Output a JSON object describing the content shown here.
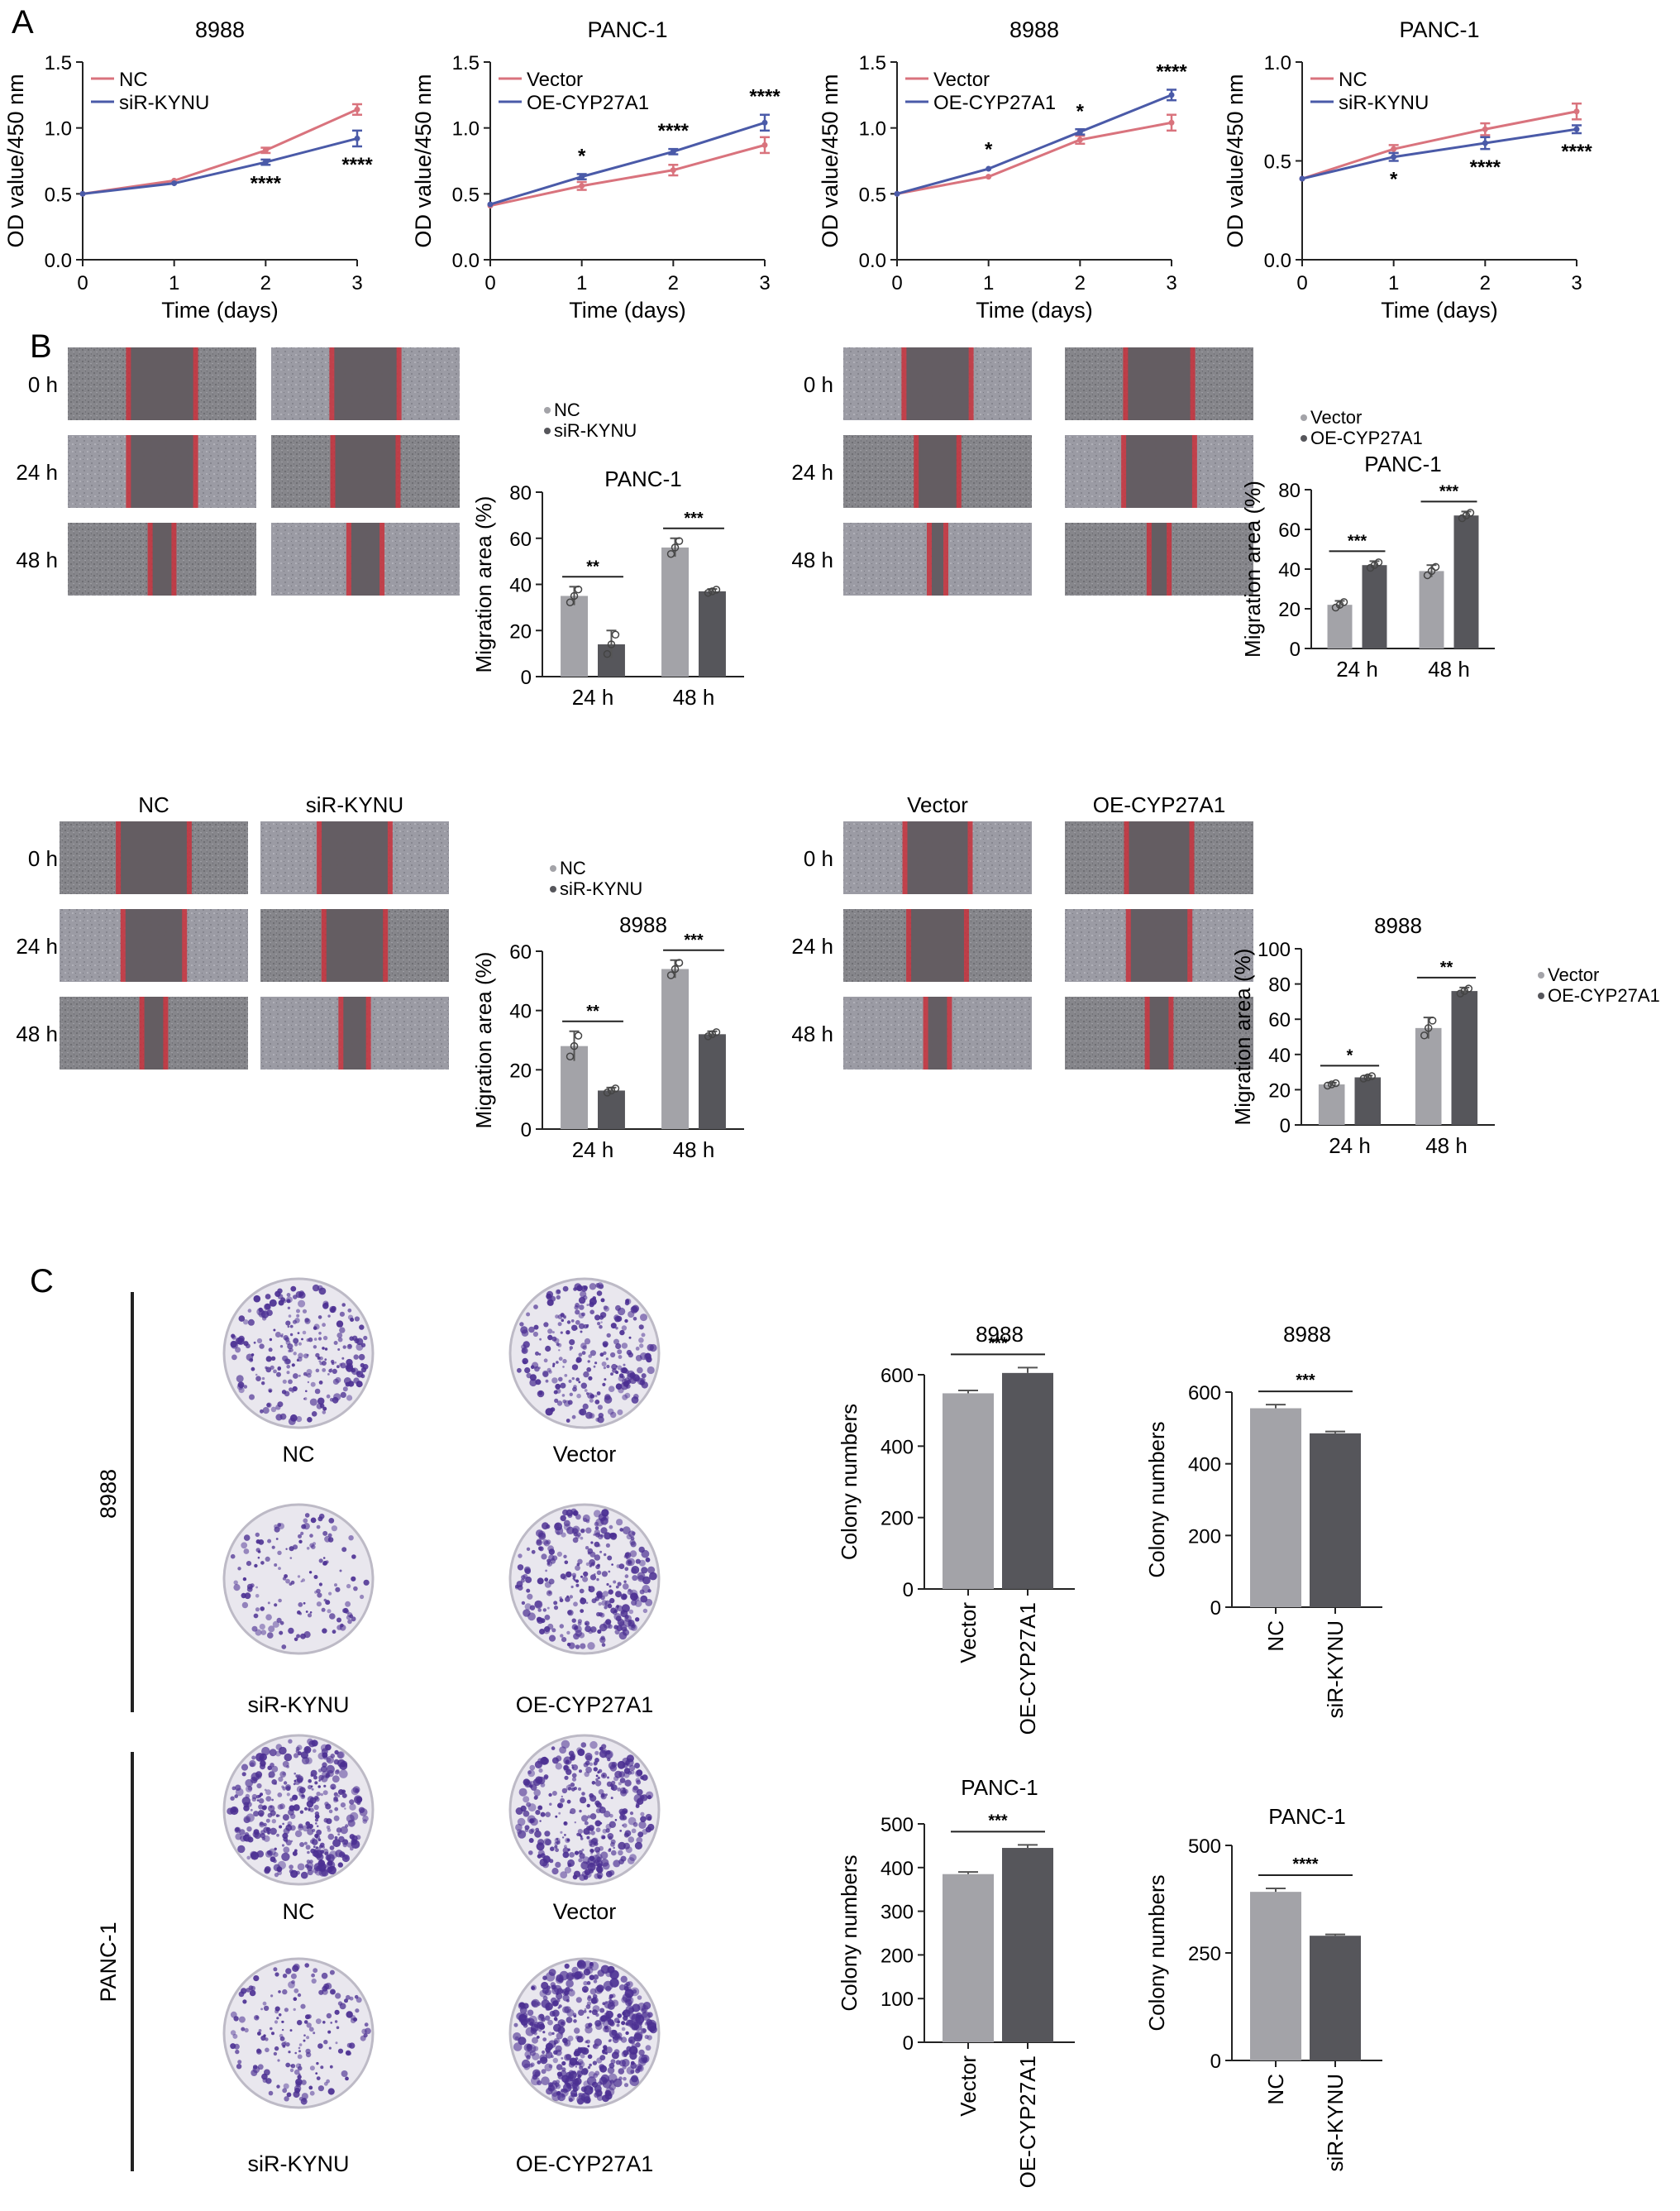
{
  "panel_labels": [
    "A",
    "B",
    "C"
  ],
  "colors": {
    "red": "#d9737d",
    "blue": "#4a5aa8",
    "bar_light": "#a3a3a8",
    "bar_dark": "#56565b",
    "wound_red": "#c8313c",
    "stain": "#4b2f92"
  },
  "wound": {
    "time_labels": [
      "0 h",
      "24 h",
      "48 h"
    ],
    "blocks": [
      {
        "col1": "NC",
        "col2": "siR-KYNU",
        "gap0": 0.33,
        "gap1": [
          0.33,
          0.32
        ],
        "gap2": [
          0.1,
          0.15
        ]
      },
      {
        "col1": "Vector",
        "col2": "OE-CYP27A1",
        "gap0": 0.33,
        "gap1": [
          0.2,
          0.35
        ],
        "gap2": [
          0.05,
          0.08
        ]
      },
      {
        "col1": "NC",
        "col2": "siR-KYNU",
        "gap0": 0.35,
        "gap1": [
          0.3,
          0.3
        ],
        "gap2": [
          0.1,
          0.12
        ]
      },
      {
        "col1": "Vector",
        "col2": "OE-CYP27A1",
        "gap0": 0.32,
        "gap1": [
          0.28,
          0.3
        ],
        "gap2": [
          0.1,
          0.1
        ]
      }
    ]
  },
  "colony": {
    "row_labels": [
      "8988",
      "PANC-1"
    ],
    "plates": [
      {
        "label": "NC",
        "density": 0.45
      },
      {
        "label": "Vector",
        "density": 0.5
      },
      {
        "label": "siR-KYNU",
        "density": 0.2
      },
      {
        "label": "OE-CYP27A1",
        "density": 0.6
      },
      {
        "label": "NC",
        "density": 0.75
      },
      {
        "label": "Vector",
        "density": 0.7
      },
      {
        "label": "siR-KYNU",
        "density": 0.3
      },
      {
        "label": "OE-CYP27A1",
        "density": 1.0
      }
    ]
  },
  "chart_data": [
    {
      "id": "A1",
      "type": "line",
      "title": "8988",
      "xlabel": "Time (days)",
      "ylabel": "OD value/450 nm",
      "x": [
        0,
        1,
        2,
        3
      ],
      "xlim": [
        0,
        3
      ],
      "ylim": [
        0,
        1.5
      ],
      "yticks": [
        "0.0",
        "0.5",
        "1.0",
        "1.5"
      ],
      "series": [
        {
          "name": "NC",
          "color": "#d9737d",
          "values": [
            0.5,
            0.6,
            0.83,
            1.14
          ],
          "err": [
            0.01,
            0.01,
            0.02,
            0.04
          ]
        },
        {
          "name": "siR-KYNU",
          "color": "#4a5aa8",
          "values": [
            0.5,
            0.58,
            0.74,
            0.92
          ],
          "err": [
            0.01,
            0.01,
            0.02,
            0.06
          ]
        }
      ],
      "stars": [
        {
          "x": 2,
          "text": "****",
          "pos": "below"
        },
        {
          "x": 3,
          "text": "****",
          "pos": "below"
        }
      ]
    },
    {
      "id": "A2",
      "type": "line",
      "title": "PANC-1",
      "xlabel": "Time (days)",
      "ylabel": "OD value/450 nm",
      "x": [
        0,
        1,
        2,
        3
      ],
      "xlim": [
        0,
        3
      ],
      "ylim": [
        0,
        1.5
      ],
      "yticks": [
        "0.0",
        "0.5",
        "1.0",
        "1.5"
      ],
      "series": [
        {
          "name": "Vector",
          "color": "#d9737d",
          "values": [
            0.41,
            0.56,
            0.68,
            0.87
          ],
          "err": [
            0.01,
            0.03,
            0.04,
            0.06
          ]
        },
        {
          "name": "OE-CYP27A1",
          "color": "#4a5aa8",
          "values": [
            0.42,
            0.63,
            0.82,
            1.04
          ],
          "err": [
            0.01,
            0.02,
            0.02,
            0.06
          ]
        }
      ],
      "stars": [
        {
          "x": 1,
          "text": "*",
          "pos": "above"
        },
        {
          "x": 2,
          "text": "****",
          "pos": "above"
        },
        {
          "x": 3,
          "text": "****",
          "pos": "above"
        }
      ]
    },
    {
      "id": "A3",
      "type": "line",
      "title": "8988",
      "xlabel": "Time (days)",
      "ylabel": "OD value/450 nm",
      "x": [
        0,
        1,
        2,
        3
      ],
      "xlim": [
        0,
        3
      ],
      "ylim": [
        0,
        1.5
      ],
      "yticks": [
        "0.0",
        "0.5",
        "1.0",
        "1.5"
      ],
      "series": [
        {
          "name": "Vector",
          "color": "#d9737d",
          "values": [
            0.5,
            0.63,
            0.91,
            1.04
          ],
          "err": [
            0.01,
            0.01,
            0.03,
            0.06
          ]
        },
        {
          "name": "OE-CYP27A1",
          "color": "#4a5aa8",
          "values": [
            0.5,
            0.69,
            0.97,
            1.25
          ],
          "err": [
            0.01,
            0.01,
            0.02,
            0.04
          ]
        }
      ],
      "stars": [
        {
          "x": 1,
          "text": "*",
          "pos": "above"
        },
        {
          "x": 2,
          "text": "*",
          "pos": "above"
        },
        {
          "x": 3,
          "text": "****",
          "pos": "above"
        }
      ]
    },
    {
      "id": "A4",
      "type": "line",
      "title": "PANC-1",
      "xlabel": "Time (days)",
      "ylabel": "OD value/450 nm",
      "x": [
        0,
        1,
        2,
        3
      ],
      "xlim": [
        0,
        3
      ],
      "ylim": [
        0,
        1.0
      ],
      "yticks": [
        "0.0",
        "0.5",
        "1.0"
      ],
      "series": [
        {
          "name": "NC",
          "color": "#d9737d",
          "values": [
            0.41,
            0.56,
            0.66,
            0.75
          ],
          "err": [
            0.01,
            0.02,
            0.03,
            0.04
          ]
        },
        {
          "name": "siR-KYNU",
          "color": "#4a5aa8",
          "values": [
            0.41,
            0.52,
            0.59,
            0.66
          ],
          "err": [
            0.01,
            0.02,
            0.03,
            0.02
          ]
        }
      ],
      "stars": [
        {
          "x": 1,
          "text": "*",
          "pos": "below"
        },
        {
          "x": 2,
          "text": "****",
          "pos": "below"
        },
        {
          "x": 3,
          "text": "****",
          "pos": "below"
        }
      ]
    },
    {
      "id": "B1",
      "type": "bar",
      "title": "PANC-1",
      "ylabel": "Migration area (%)",
      "categories": [
        "24 h",
        "48 h"
      ],
      "ylim": [
        0,
        80
      ],
      "yticks": [
        "0",
        "20",
        "40",
        "60",
        "80"
      ],
      "legend": [
        "NC",
        "siR-KYNU"
      ],
      "series": [
        {
          "name": "NC",
          "values": [
            35,
            56
          ],
          "err": [
            4,
            4
          ]
        },
        {
          "name": "siR-KYNU",
          "values": [
            14,
            37
          ],
          "err": [
            6,
            1
          ]
        }
      ],
      "sig": [
        "**",
        "***"
      ]
    },
    {
      "id": "B2",
      "type": "bar",
      "title": "PANC-1",
      "ylabel": "Migration area (%)",
      "categories": [
        "24 h",
        "48 h"
      ],
      "ylim": [
        0,
        80
      ],
      "yticks": [
        "0",
        "20",
        "40",
        "60",
        "80"
      ],
      "legend": [
        "Vector",
        "OE-CYP27A1"
      ],
      "series": [
        {
          "name": "Vector",
          "values": [
            22,
            39
          ],
          "err": [
            2,
            3
          ]
        },
        {
          "name": "OE-CYP27A1",
          "values": [
            42,
            67
          ],
          "err": [
            2,
            2
          ]
        }
      ],
      "sig": [
        "***",
        "***"
      ]
    },
    {
      "id": "B3",
      "type": "bar",
      "title": "8988",
      "ylabel": "Migration area (%)",
      "categories": [
        "24 h",
        "48 h"
      ],
      "ylim": [
        0,
        60
      ],
      "yticks": [
        "0",
        "20",
        "40",
        "60"
      ],
      "legend": [
        "NC",
        "siR-KYNU"
      ],
      "series": [
        {
          "name": "NC",
          "values": [
            28,
            54
          ],
          "err": [
            5,
            3
          ]
        },
        {
          "name": "siR-KYNU",
          "values": [
            13,
            32
          ],
          "err": [
            1,
            1
          ]
        }
      ],
      "sig": [
        "**",
        "***"
      ]
    },
    {
      "id": "B4",
      "type": "bar",
      "title": "8988",
      "ylabel": "Migration area (%)",
      "categories": [
        "24 h",
        "48 h"
      ],
      "ylim": [
        0,
        100
      ],
      "yticks": [
        "0",
        "20",
        "40",
        "60",
        "80",
        "100"
      ],
      "legend": [
        "Vector",
        "OE-CYP27A1"
      ],
      "series": [
        {
          "name": "Vector",
          "values": [
            23,
            55
          ],
          "err": [
            1,
            6
          ]
        },
        {
          "name": "OE-CYP27A1",
          "values": [
            27,
            76
          ],
          "err": [
            1,
            2
          ]
        }
      ],
      "sig": [
        "*",
        "**"
      ]
    },
    {
      "id": "C1",
      "type": "bar",
      "title": "8988",
      "ylabel": "Colony numbers",
      "categories": [
        "Vector",
        "OE-CYP27A1"
      ],
      "ylim": [
        0,
        600
      ],
      "yticks": [
        "0",
        "200",
        "400",
        "600"
      ],
      "values": [
        548,
        605
      ],
      "err": [
        8,
        15
      ],
      "sig": "***"
    },
    {
      "id": "C2",
      "type": "bar",
      "title": "8988",
      "ylabel": "Colony numbers",
      "categories": [
        "NC",
        "siR-KYNU"
      ],
      "ylim": [
        0,
        600
      ],
      "yticks": [
        "0",
        "200",
        "400",
        "600"
      ],
      "values": [
        555,
        485
      ],
      "err": [
        10,
        5
      ],
      "sig": "***"
    },
    {
      "id": "C3",
      "type": "bar",
      "title": "PANC-1",
      "ylabel": "Colony numbers",
      "categories": [
        "Vector",
        "OE-CYP27A1"
      ],
      "ylim": [
        0,
        500
      ],
      "yticks": [
        "0",
        "100",
        "200",
        "300",
        "400",
        "500"
      ],
      "values": [
        385,
        445
      ],
      "err": [
        5,
        7
      ],
      "sig": "***"
    },
    {
      "id": "C4",
      "type": "bar",
      "title": "PANC-1",
      "ylabel": "Colony numbers",
      "categories": [
        "NC",
        "siR-KYNU"
      ],
      "ylim": [
        0,
        500
      ],
      "yticks": [
        "0",
        "250",
        "500"
      ],
      "values": [
        392,
        290
      ],
      "err": [
        8,
        3
      ],
      "sig": "****"
    }
  ]
}
